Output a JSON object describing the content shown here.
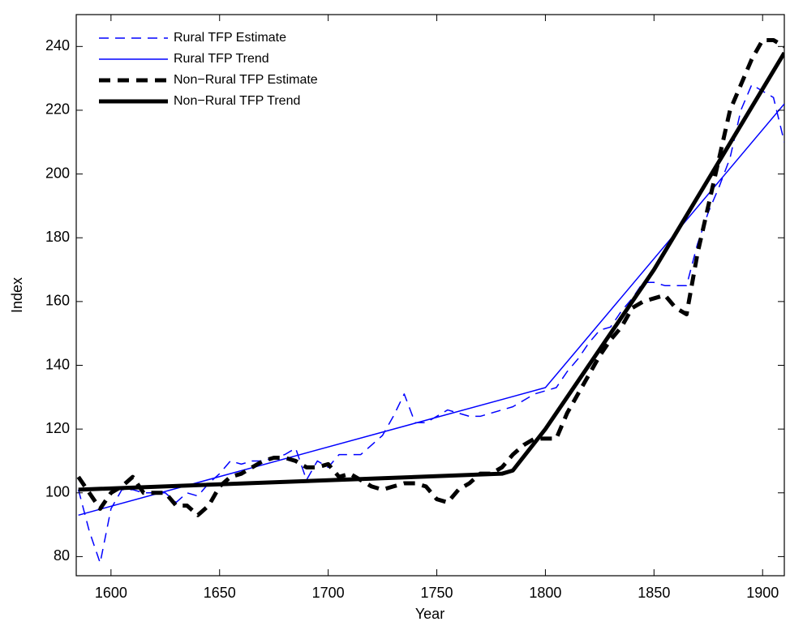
{
  "chart_data": {
    "type": "line",
    "x_label": "Year",
    "y_label": "Index",
    "xlim": [
      1584,
      1910
    ],
    "ylim": [
      74,
      250
    ],
    "xticks": [
      1600,
      1650,
      1700,
      1750,
      1800,
      1850,
      1900
    ],
    "yticks": [
      80,
      100,
      120,
      140,
      160,
      180,
      200,
      220,
      240
    ],
    "grid": false,
    "legend": "upper-left",
    "series": [
      {
        "name": "Rural TFP Estimate",
        "color": "#0000ff",
        "dashed": true,
        "width": 1.5,
        "x": [
          1585,
          1590,
          1595,
          1600,
          1605,
          1610,
          1615,
          1620,
          1625,
          1630,
          1635,
          1640,
          1645,
          1650,
          1655,
          1660,
          1665,
          1670,
          1675,
          1680,
          1685,
          1690,
          1695,
          1700,
          1705,
          1710,
          1715,
          1720,
          1725,
          1730,
          1735,
          1740,
          1745,
          1750,
          1755,
          1760,
          1765,
          1770,
          1775,
          1780,
          1785,
          1790,
          1795,
          1800,
          1805,
          1810,
          1815,
          1820,
          1825,
          1830,
          1835,
          1840,
          1845,
          1850,
          1855,
          1860,
          1865,
          1870,
          1875,
          1880,
          1885,
          1890,
          1895,
          1900,
          1905,
          1910
        ],
        "values": [
          101,
          88,
          78,
          95,
          101,
          101,
          100,
          100,
          100,
          97,
          100,
          99,
          103,
          106,
          110,
          109,
          110,
          110,
          111,
          112,
          114,
          104,
          110,
          108,
          112,
          112,
          112,
          115,
          118,
          124,
          131,
          122,
          122,
          124,
          126,
          125,
          124,
          124,
          125,
          126,
          127,
          129,
          131,
          132,
          133,
          138,
          142,
          147,
          151,
          152,
          157,
          161,
          166,
          166,
          165,
          165,
          165,
          178,
          188,
          196,
          205,
          220,
          228,
          226,
          224,
          210
        ]
      },
      {
        "name": "Rural TFP Trend",
        "color": "#0000ff",
        "dashed": false,
        "width": 1.5,
        "x": [
          1585,
          1800,
          1910
        ],
        "values": [
          93,
          133,
          222
        ]
      },
      {
        "name": "Non−Rural TFP Estimate",
        "color": "#000000",
        "dashed": true,
        "width": 5,
        "x": [
          1585,
          1590,
          1595,
          1600,
          1605,
          1610,
          1615,
          1620,
          1625,
          1630,
          1635,
          1640,
          1645,
          1650,
          1655,
          1660,
          1665,
          1670,
          1675,
          1680,
          1685,
          1690,
          1695,
          1700,
          1705,
          1710,
          1715,
          1720,
          1725,
          1730,
          1735,
          1740,
          1745,
          1750,
          1755,
          1760,
          1765,
          1770,
          1775,
          1780,
          1785,
          1790,
          1795,
          1800,
          1805,
          1810,
          1815,
          1820,
          1825,
          1830,
          1835,
          1840,
          1845,
          1850,
          1855,
          1860,
          1865,
          1870,
          1875,
          1880,
          1885,
          1890,
          1895,
          1900,
          1905,
          1910
        ],
        "values": [
          105,
          100,
          95,
          100,
          102,
          105,
          100,
          100,
          100,
          96,
          96,
          93,
          96,
          102,
          105,
          106,
          108,
          110,
          111,
          111,
          110,
          108,
          108,
          109,
          105,
          106,
          104,
          102,
          101,
          102,
          103,
          103,
          102,
          98,
          97,
          101,
          103,
          106,
          106,
          108,
          112,
          115,
          117,
          117,
          117,
          125,
          131,
          137,
          143,
          148,
          152,
          158,
          160,
          161,
          162,
          158,
          156,
          175,
          190,
          205,
          220,
          228,
          236,
          242,
          242,
          240
        ]
      },
      {
        "name": "Non−Rural TFP Trend",
        "color": "#000000",
        "dashed": false,
        "width": 5,
        "x": [
          1585,
          1780,
          1785,
          1800,
          1850,
          1910
        ],
        "values": [
          101,
          106,
          107,
          120,
          170,
          238
        ]
      }
    ]
  }
}
